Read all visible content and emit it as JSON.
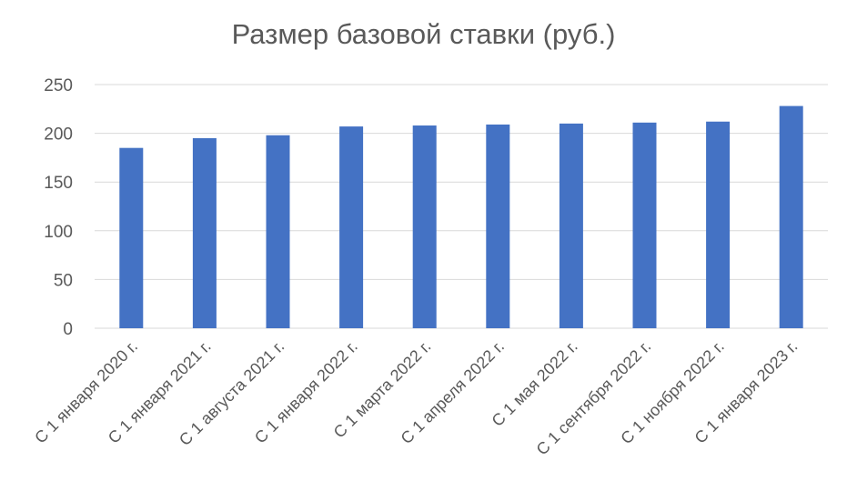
{
  "chart_data": {
    "type": "bar",
    "title": "Размер базовой ставки (руб.)",
    "xlabel": "",
    "ylabel": "",
    "categories": [
      "С 1 января 2020 г.",
      "С 1 января 2021 г.",
      "С 1 августа 2021 г.",
      "С 1 января 2022 г.",
      "С 1 марта 2022 г.",
      "С 1 апреля 2022 г.",
      "С 1 мая 2022 г.",
      "С 1 сентября 2022 г.",
      "С 1 ноября 2022 г.",
      "С 1 января 2023 г."
    ],
    "values": [
      185,
      195,
      198,
      207,
      208,
      209,
      210,
      211,
      212,
      228
    ],
    "ylim": [
      0,
      250
    ],
    "yticks": [
      "0",
      "50",
      "100",
      "150",
      "200",
      "250"
    ],
    "grid": true,
    "legend": "none",
    "bar_color": "#4472C4",
    "grid_color": "#D9D9D9",
    "text_color": "#595959"
  }
}
